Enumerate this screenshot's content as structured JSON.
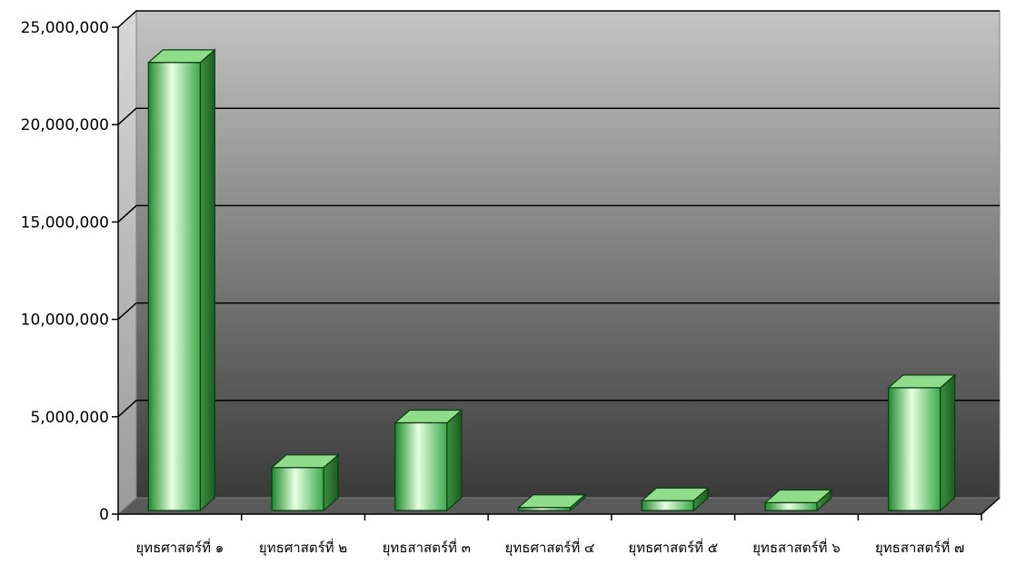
{
  "chart_data": {
    "type": "bar",
    "title": "",
    "xlabel": "",
    "ylabel": "",
    "categories": [
      "ยุทธศาสตร์ที่ ๑",
      "ยุทธศาสตร์ที่ ๒",
      "ยุทธสาสตร์ที่ ๓",
      "ยุทธศาสตร์ที่ ๔",
      "ยุทธศาสตร์ที่ ๕",
      "ยุทธสาสตร์ที่ ๖",
      "ยุทธสาสตร์ที่ ๗"
    ],
    "values": [
      23000000,
      2200000,
      4500000,
      150000,
      500000,
      400000,
      6300000
    ],
    "ylim": [
      0,
      25000000
    ],
    "yticks": [
      0,
      5000000,
      10000000,
      15000000,
      20000000,
      25000000
    ],
    "ytick_labels": [
      "0",
      "5,000,000",
      "10,000,000",
      "15,000,000",
      "20,000,000",
      "25,000,000"
    ],
    "grid": true,
    "legend": "none",
    "colors": {
      "bar_front_light": "#e6ffe0",
      "bar_front_dark": "#1e8a2c",
      "bar_top": "#8fdc8a",
      "bar_side": "#2a7a30",
      "bar_outline": "#0b3d10",
      "wall_top": "#c4c4c4",
      "wall_bottom": "#3a3a3a",
      "floor": "#5a5a5a",
      "gridline": "#000000"
    }
  }
}
